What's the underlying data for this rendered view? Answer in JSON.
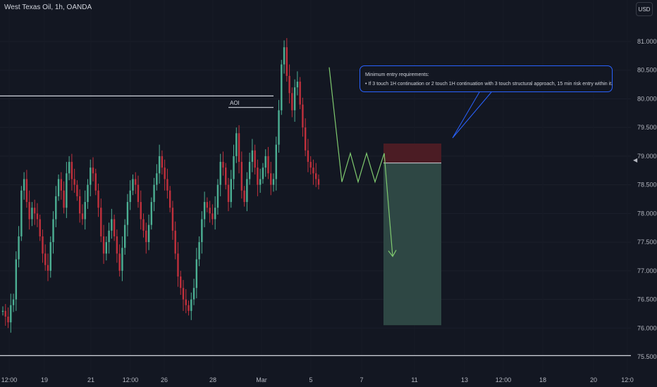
{
  "header": {
    "symbol": "West Texas Oil, 1h, OANDA",
    "currency_button": "USD"
  },
  "note": {
    "title": "Minimum entry requirements:",
    "bullet": "• If 3 touch 1H continuation or 2 touch 1H continuation with 3 touch structural approach, 15 min risk entry within it."
  },
  "annotations": {
    "aoi_label": "AOI"
  },
  "colors": {
    "background": "#131722",
    "bull": "#4caf93",
    "bear": "#c0303c",
    "projection": "#7fc96f",
    "stop_zone": "#4e1c25",
    "target_zone": "#2f4a47",
    "note_border": "#2962ff"
  },
  "right_scale_marker_icon": "chevron-left-icon",
  "chart_data": {
    "type": "candlestick",
    "y_axis": {
      "ticks": [
        "81.000",
        "80.500",
        "80.000",
        "79.500",
        "79.000",
        "78.500",
        "78.000",
        "77.500",
        "77.000",
        "76.500",
        "76.000",
        "75.500"
      ],
      "ylim": [
        75.4,
        81.35
      ]
    },
    "x_axis": {
      "ticks": [
        "12:00",
        "19",
        "21",
        "12:00",
        "26",
        "28",
        "Mar",
        "5",
        "7",
        "11",
        "13",
        "12:00",
        "18",
        "20",
        "12:0"
      ]
    },
    "horizontal_levels": [
      {
        "price": 80.05,
        "note": "upper resistance line"
      },
      {
        "price": 79.85,
        "note": "AOI"
      },
      {
        "price": 75.52,
        "note": "lower support line"
      }
    ],
    "position": {
      "type": "short",
      "stop_top": 79.22,
      "entry": 78.88,
      "target": 76.05
    },
    "projection_path": [
      80.55,
      78.55,
      79.05,
      78.55,
      79.05,
      78.55,
      79.05,
      77.25
    ],
    "ohlc_approx": [
      76.3,
      76.2,
      76.1,
      76.4,
      76.5,
      77.2,
      77.6,
      78.4,
      78.6,
      78.2,
      77.9,
      78.1,
      78.0,
      77.9,
      77.6,
      77.3,
      77.1,
      77.0,
      77.5,
      77.9,
      78.3,
      78.6,
      78.4,
      78.1,
      78.7,
      78.9,
      78.6,
      78.5,
      78.3,
      78.0,
      77.9,
      78.2,
      78.5,
      78.8,
      78.7,
      78.4,
      78.1,
      77.6,
      77.3,
      77.5,
      77.7,
      77.9,
      77.6,
      77.3,
      77.0,
      77.4,
      77.8,
      78.2,
      78.4,
      78.6,
      78.5,
      78.2,
      77.9,
      77.7,
      77.5,
      77.8,
      78.2,
      78.5,
      78.7,
      79.0,
      78.8,
      78.6,
      78.4,
      78.1,
      77.7,
      77.3,
      76.9,
      76.7,
      76.5,
      76.4,
      76.3,
      76.5,
      76.7,
      77.2,
      77.5,
      77.9,
      78.2,
      78.1,
      78.0,
      77.9,
      78.1,
      78.5,
      78.9,
      78.8,
      78.5,
      78.2,
      78.6,
      79.0,
      79.4,
      78.9,
      78.4,
      78.2,
      78.6,
      78.9,
      79.1,
      78.8,
      78.5,
      78.6,
      78.8,
      79.0,
      78.7,
      78.5,
      78.6,
      79.2,
      79.8,
      80.6,
      80.9,
      80.4,
      80.1,
      79.8,
      80.2,
      80.3,
      79.9,
      79.5,
      79.1,
      78.9,
      78.8,
      78.7,
      78.6,
      78.5
    ]
  }
}
